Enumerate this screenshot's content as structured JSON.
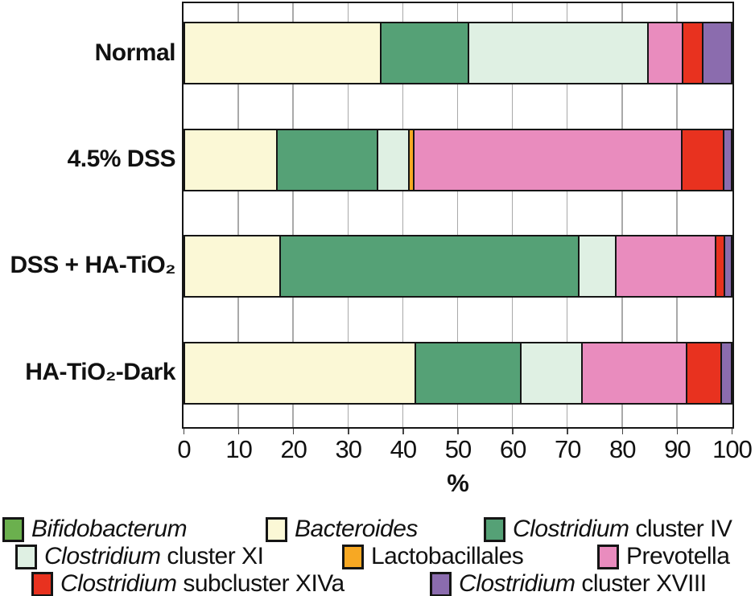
{
  "chart_data": {
    "type": "bar",
    "stacked": true,
    "orientation": "horizontal",
    "title": "",
    "xlabel": "%",
    "xlim": [
      0,
      100
    ],
    "xticks": [
      0,
      10,
      20,
      30,
      40,
      50,
      60,
      70,
      80,
      90,
      100
    ],
    "grid": true,
    "legend_position": "bottom",
    "categories": [
      "Normal",
      "4.5% DSS",
      "DSS + HA-TiO₂",
      "HA-TiO₂-Dark"
    ],
    "series": [
      {
        "name": "Bifidobacterum",
        "color": "#6bb04e",
        "values": [
          0,
          0,
          0,
          0
        ]
      },
      {
        "name": "Bacteroides",
        "color": "#fbf8d6",
        "values": [
          36,
          17,
          17.5,
          42.3
        ]
      },
      {
        "name": "Clostridium cluster IV",
        "color": "#55a176",
        "values": [
          16,
          18.4,
          54.8,
          19.4
        ]
      },
      {
        "name": "Clostridium cluster XI",
        "color": "#dff0e3",
        "values": [
          33,
          5.7,
          6.7,
          11.2
        ]
      },
      {
        "name": "Lactobacillales",
        "color": "#f7a823",
        "values": [
          0,
          1.0,
          0,
          0
        ]
      },
      {
        "name": "Prevotella",
        "color": "#e98cbe",
        "values": [
          6.3,
          49,
          18.4,
          19.1
        ]
      },
      {
        "name": "Clostridium subcluster XIVa",
        "color": "#e8321f",
        "values": [
          3.7,
          7.7,
          1.6,
          6.4
        ]
      },
      {
        "name": "Clostridium cluster XVIII",
        "color": "#8b6cae",
        "values": [
          5,
          1.2,
          1.0,
          1.6
        ]
      }
    ]
  },
  "legend": {
    "items": [
      {
        "italic": "Bifidobacterum",
        "rest": "",
        "color": "#6bb04e"
      },
      {
        "italic": "Bacteroides",
        "rest": "",
        "color": "#fbf8d6"
      },
      {
        "italic": "Clostridium",
        "rest": " cluster IV",
        "color": "#55a176"
      },
      {
        "italic": "Clostridium",
        "rest": " cluster XI",
        "color": "#dff0e3"
      },
      {
        "italic": "",
        "rest": "Lactobacillales",
        "color": "#f7a823"
      },
      {
        "italic": "",
        "rest": "Prevotella",
        "color": "#e98cbe"
      },
      {
        "italic": "Clostridium",
        "rest": " subcluster XIVa",
        "color": "#e8321f"
      },
      {
        "italic": "Clostridium",
        "rest": " cluster XVIII",
        "color": "#8b6cae"
      }
    ]
  },
  "colors": {
    "frame": "#151515",
    "grid": "#a9a9a9"
  }
}
